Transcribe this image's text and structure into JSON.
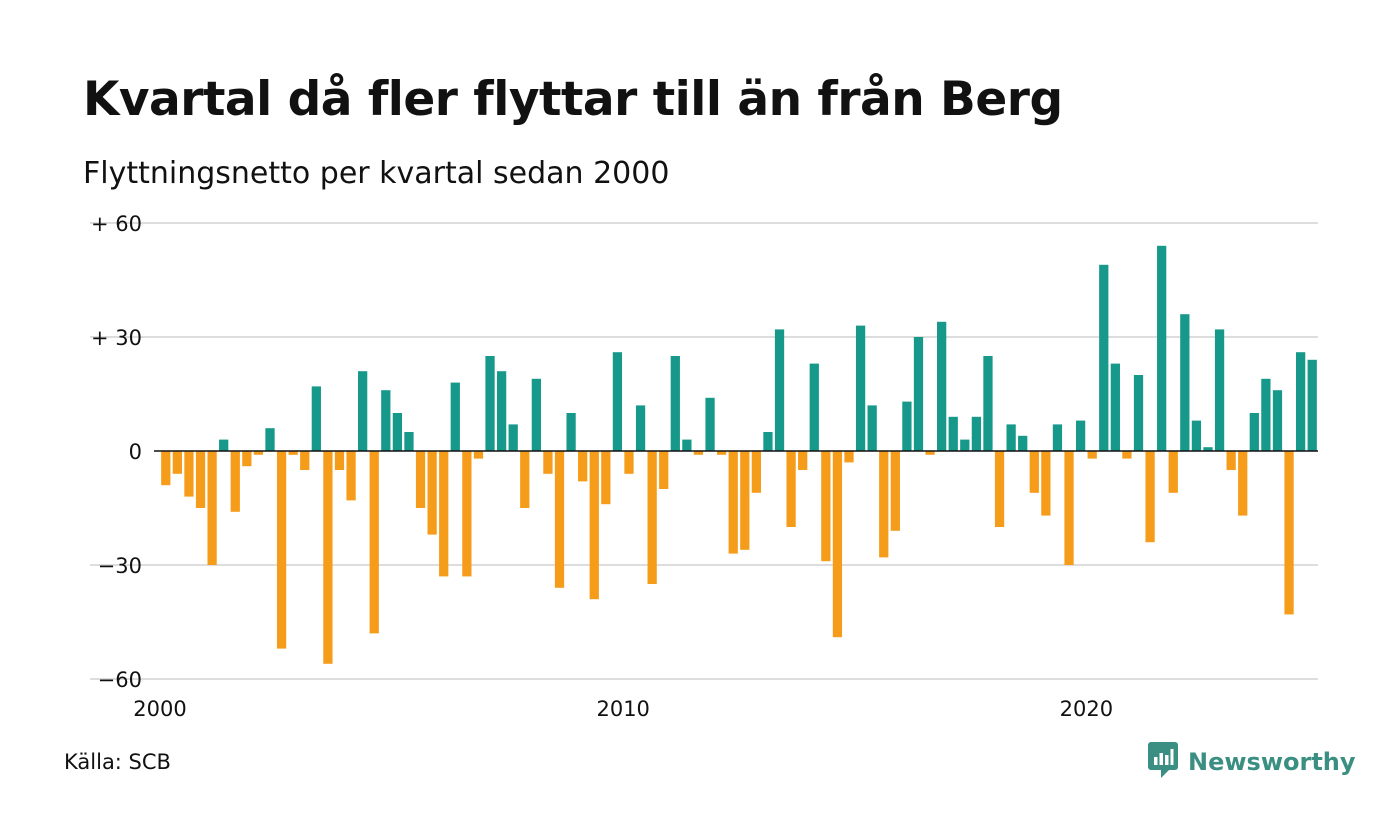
{
  "title": "Kvartal då fler flyttar till än från Berg",
  "subtitle": "Flyttningsnetto per kvartal sedan 2000",
  "source": "Källa: SCB",
  "brand": {
    "name": "Newsworthy",
    "icon": "newsworthy-logo-icon"
  },
  "colors": {
    "positive": "#16988a",
    "negative": "#f59c1a",
    "grid": "#dddddd",
    "zero_line": "#111111",
    "text": "#111111",
    "brand": "#3a8f82"
  },
  "chart_data": {
    "type": "bar",
    "x_start": "2000 Q1",
    "frequency": "quarterly",
    "x_ticks": [
      "2000",
      "2010",
      "2020"
    ],
    "y_ticks": [
      {
        "value": 60,
        "label": "+ 60"
      },
      {
        "value": 30,
        "label": "+ 30"
      },
      {
        "value": 0,
        "label": "0"
      },
      {
        "value": -30,
        "label": "−30"
      },
      {
        "value": -60,
        "label": "−60"
      }
    ],
    "ylim": [
      -60,
      60
    ],
    "grid": true,
    "values": [
      -9,
      -6,
      -12,
      -15,
      -30,
      3,
      -16,
      -4,
      -1,
      6,
      -52,
      -1,
      -5,
      17,
      -56,
      -5,
      -13,
      21,
      -48,
      16,
      10,
      5,
      -15,
      -22,
      -33,
      18,
      -33,
      -2,
      25,
      21,
      7,
      -15,
      19,
      -6,
      -36,
      10,
      -8,
      -39,
      -14,
      26,
      -6,
      12,
      -35,
      -10,
      25,
      3,
      -1,
      14,
      -1,
      -27,
      -26,
      -11,
      5,
      32,
      -20,
      -5,
      23,
      -29,
      -49,
      -3,
      33,
      12,
      -28,
      -21,
      13,
      30,
      -1,
      34,
      9,
      3,
      9,
      25,
      -20,
      7,
      4,
      -11,
      -17,
      7,
      -30,
      8,
      -2,
      49,
      23,
      -2,
      20,
      -24,
      54,
      -11,
      36,
      8,
      1,
      32,
      -5,
      -17,
      10,
      19,
      16,
      -43,
      26,
      24
    ]
  }
}
